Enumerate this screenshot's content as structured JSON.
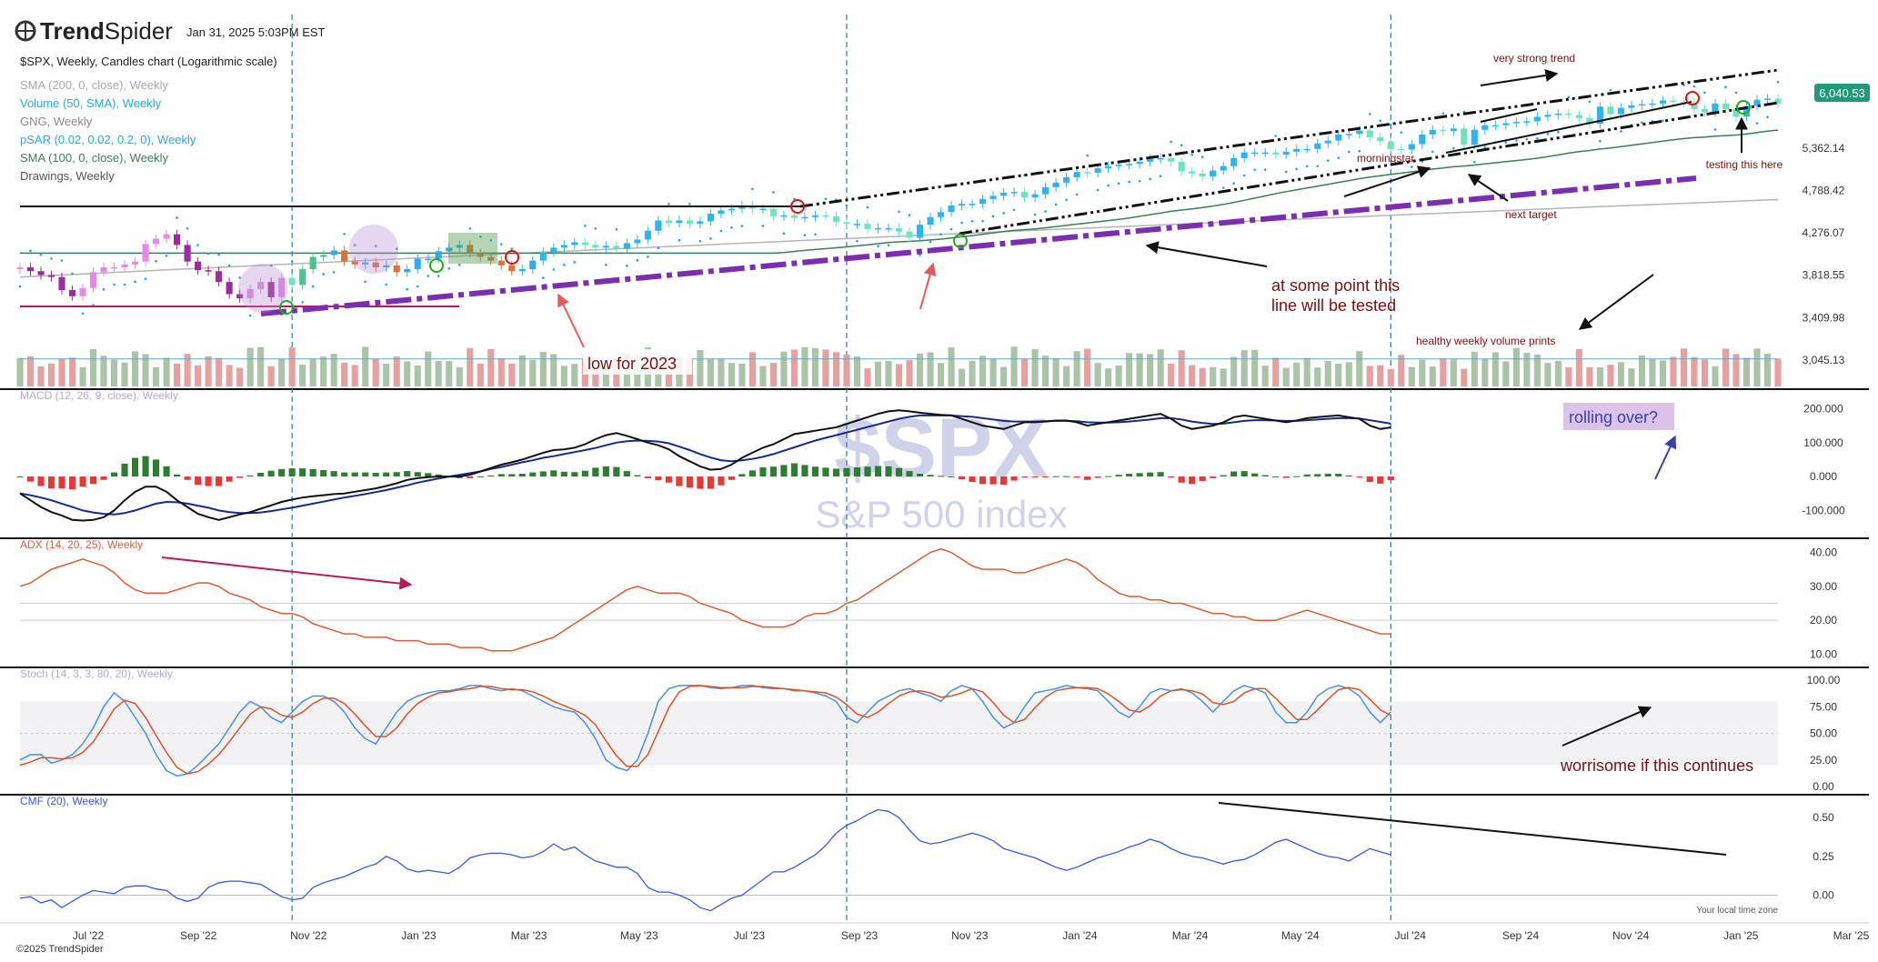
{
  "header": {
    "logo_a": "Trend",
    "logo_b": "Spider",
    "timestamp": "Jan 31, 2025 5:03PM EST",
    "chart_title": "$SPX, Weekly, Candles chart (Logarithmic scale)",
    "footer": "©2025 TrendSpider",
    "local_time": "Your local time zone"
  },
  "indicators": [
    {
      "label": "SMA (200, 0, close), Weekly",
      "color": "#a8a8a8"
    },
    {
      "label": "Volume (50, SMA), Weekly",
      "color": "#2aa6e0"
    },
    {
      "label": "GNG, Weekly",
      "color": "#888888"
    },
    {
      "label": "pSAR (0.02, 0.02, 0.2, 0), Weekly",
      "color": "#2aa6e0"
    },
    {
      "label": "SMA (100, 0, close), Weekly",
      "color": "#3e7d5a"
    },
    {
      "label": "Drawings, Weekly",
      "color": "#555555"
    }
  ],
  "watermark": {
    "symbol": "$SPX",
    "name": "S&P 500 index"
  },
  "annotations": {
    "very_strong_trend": "very strong trend",
    "testing": "testing this here",
    "morningstar": "morningstar",
    "next_target": "next target",
    "some_point_1": "at some point this",
    "some_point_2": "line will be tested",
    "healthy_volume": "healthy weekly volume prints",
    "low_2023": "low for 2023",
    "rolling_over": "rolling over?",
    "worrisome": "worrisome if this continues"
  },
  "price_badge": "6,040.53",
  "chart_data": [
    {
      "type": "candlestick",
      "title": "$SPX, Weekly, Candles chart (Logarithmic scale)",
      "y_scale": "log",
      "ylim": [
        3000,
        6400
      ],
      "y_ticks": [
        "5,362.14",
        "4,788.42",
        "4,276.07",
        "3,818.55",
        "3,409.98",
        "3,045.13"
      ],
      "x_ticks": [
        "Jul '22",
        "Sep '22",
        "Nov '22",
        "Jan '23",
        "Mar '23",
        "May '23",
        "Jul '23",
        "Sep '23",
        "Nov '23",
        "Jan '24",
        "Mar '24",
        "May '24",
        "Jul '24",
        "Sep '24",
        "Nov '24",
        "Jan '25",
        "Mar '25"
      ],
      "last_price": 6040.53,
      "horizontal_levels": [
        4600,
        3590
      ],
      "weekly_closes": [
        3900,
        3860,
        3820,
        3800,
        3670,
        3610,
        3690,
        3850,
        3900,
        3900,
        3930,
        3960,
        4150,
        4210,
        4260,
        4140,
        3960,
        3870,
        3860,
        3750,
        3630,
        3590,
        3680,
        3750,
        3600,
        3790,
        3720,
        3880,
        4010,
        4030,
        4080,
        3960,
        3930,
        3950,
        3900,
        3920,
        3850,
        3880,
        3990,
        3990,
        4070,
        4110,
        4140,
        4050,
        4010,
        3970,
        3920,
        3860,
        3880,
        3970,
        4060,
        4110,
        4140,
        4170,
        4140,
        4110,
        4130,
        4100,
        4160,
        4200,
        4300,
        4420,
        4390,
        4420,
        4380,
        4410,
        4500,
        4540,
        4560,
        4600,
        4560,
        4560,
        4470,
        4480,
        4450,
        4460,
        4480,
        4470,
        4400,
        4380,
        4380,
        4320,
        4330,
        4330,
        4290,
        4220,
        4370,
        4460,
        4520,
        4600,
        4620,
        4620,
        4680,
        4720,
        4760,
        4770,
        4700,
        4740,
        4830,
        4890,
        4960,
        5030,
        5020,
        5080,
        5110,
        5130,
        5140,
        5170,
        5210,
        5220,
        5170,
        5040,
        5010,
        4970,
        5050,
        5110,
        5220,
        5300,
        5300,
        5300,
        5270,
        5310,
        5350,
        5350,
        5430,
        5470,
        5560,
        5570,
        5620,
        5520,
        5460,
        5350,
        5340,
        5420,
        5560,
        5630,
        5610,
        5650,
        5410,
        5630,
        5700,
        5700,
        5730,
        5750,
        5760,
        5830,
        5860,
        5880,
        5860,
        5810,
        5720,
        5990,
        5870,
        5970,
        6010,
        6030,
        6040,
        6090,
        6070,
        6050,
        5950,
        5900,
        6040,
        5950,
        5830,
        6000,
        6100,
        6120,
        6040
      ]
    },
    {
      "type": "bar",
      "title": "Volume (50, SMA), Weekly",
      "yrange": [
        0,
        1
      ]
    },
    {
      "type": "line",
      "title": "MACD (12, 26, 9, close), Weekly",
      "ylim": [
        -150,
        220
      ],
      "y_ticks": [
        "200.000",
        "100.000",
        "0.000",
        "-100.000"
      ],
      "series": [
        {
          "name": "MACD",
          "values": [
            -50,
            -70,
            -90,
            -105,
            -115,
            -128,
            -130,
            -128,
            -120,
            -100,
            -70,
            -45,
            -30,
            -30,
            -45,
            -70,
            -90,
            -110,
            -120,
            -128,
            -120,
            -112,
            -105,
            -95,
            -85,
            -75,
            -68,
            -62,
            -58,
            -55,
            -52,
            -50,
            -45,
            -40,
            -35,
            -28,
            -20,
            -10,
            -5,
            -2,
            0,
            0,
            0,
            5,
            15,
            25,
            35,
            42,
            50,
            60,
            70,
            78,
            80,
            85,
            95,
            110,
            122,
            128,
            120,
            110,
            100,
            92,
            80,
            60,
            45,
            30,
            20,
            22,
            35,
            55,
            70,
            85,
            95,
            110,
            125,
            130,
            135,
            140,
            145,
            155,
            165,
            175,
            185,
            192,
            195,
            192,
            188,
            185,
            182,
            180,
            170,
            160,
            150,
            145,
            140,
            150,
            160,
            160,
            162,
            165,
            165,
            160,
            150,
            155,
            160,
            165,
            170,
            175,
            180,
            185,
            170,
            150,
            140,
            145,
            150,
            160,
            175,
            180,
            175,
            170,
            165,
            160,
            165,
            172,
            175,
            178,
            180,
            175,
            170,
            150,
            140,
            145
          ]
        },
        {
          "name": "Signal",
          "values": [
            -50,
            -55,
            -62,
            -70,
            -80,
            -90,
            -100,
            -106,
            -110,
            -112,
            -108,
            -100,
            -90,
            -80,
            -75,
            -76,
            -80,
            -86,
            -92,
            -100,
            -105,
            -108,
            -108,
            -106,
            -102,
            -97,
            -92,
            -86,
            -80,
            -74,
            -68,
            -62,
            -57,
            -52,
            -46,
            -40,
            -33,
            -26,
            -18,
            -12,
            -6,
            0,
            5,
            10,
            15,
            22,
            28,
            35,
            42,
            48,
            55,
            60,
            66,
            72,
            78,
            84,
            92,
            100,
            104,
            106,
            105,
            103,
            98,
            88,
            78,
            66,
            56,
            48,
            45,
            48,
            52,
            58,
            66,
            76,
            86,
            96,
            106,
            114,
            122,
            130,
            138,
            146,
            154,
            162,
            170,
            176,
            180,
            180,
            180,
            180,
            178,
            176,
            172,
            168,
            164,
            162,
            162,
            162,
            163,
            164,
            164,
            163,
            160,
            159,
            159,
            160,
            162,
            165,
            168,
            172,
            172,
            168,
            162,
            158,
            155,
            156,
            160,
            164,
            166,
            166,
            165,
            164,
            164,
            166,
            168,
            170,
            172,
            172,
            171,
            166,
            161,
            156
          ]
        }
      ]
    },
    {
      "type": "line",
      "title": "ADX (14, 20, 25), Weekly",
      "ylim": [
        8,
        42
      ],
      "y_ticks": [
        "40.00",
        "30.00",
        "20.00",
        "10.00"
      ],
      "values": [
        30,
        31,
        33,
        35,
        36,
        37,
        38,
        37,
        36,
        34,
        31,
        29,
        28,
        28,
        28,
        29,
        30,
        31,
        31,
        30,
        28,
        27,
        26,
        24,
        23,
        22,
        22,
        21,
        19,
        18,
        17,
        16,
        16,
        15,
        15,
        15,
        14,
        14,
        14,
        13,
        13,
        13,
        12,
        12,
        12,
        11,
        11,
        11,
        12,
        13,
        14,
        15,
        17,
        19,
        21,
        23,
        25,
        27,
        29,
        30,
        29,
        28,
        28,
        28,
        27,
        25,
        24,
        23,
        22,
        20,
        19,
        18,
        18,
        18,
        19,
        21,
        22,
        22,
        23,
        25,
        26,
        28,
        30,
        32,
        34,
        36,
        38,
        40,
        41,
        40,
        38,
        36,
        35,
        35,
        35,
        34,
        34,
        35,
        36,
        37,
        38,
        37,
        35,
        32,
        30,
        28,
        27,
        27,
        26,
        26,
        25,
        25,
        24,
        23,
        22,
        22,
        21,
        21,
        20,
        20,
        20,
        21,
        22,
        23,
        22,
        21,
        20,
        19,
        18,
        17,
        16,
        16
      ]
    },
    {
      "type": "line",
      "title": "Stoch (14, 3, 3, 80, 20), Weekly",
      "ylim": [
        0,
        100
      ],
      "y_ticks": [
        "100.00",
        "75.00",
        "50.00",
        "25.00",
        "0.00"
      ],
      "series": [
        {
          "name": "%K",
          "values": [
            25,
            30,
            30,
            22,
            25,
            30,
            40,
            55,
            75,
            88,
            80,
            65,
            50,
            30,
            15,
            10,
            12,
            20,
            30,
            40,
            55,
            70,
            80,
            75,
            65,
            60,
            70,
            80,
            85,
            85,
            80,
            70,
            55,
            45,
            40,
            55,
            70,
            80,
            85,
            88,
            90,
            90,
            92,
            95,
            95,
            92,
            90,
            92,
            90,
            85,
            80,
            75,
            72,
            70,
            60,
            45,
            25,
            18,
            15,
            25,
            50,
            80,
            92,
            95,
            95,
            95,
            93,
            92,
            93,
            95,
            95,
            93,
            92,
            92,
            90,
            90,
            88,
            85,
            80,
            65,
            60,
            70,
            80,
            85,
            90,
            92,
            88,
            85,
            80,
            90,
            95,
            92,
            80,
            65,
            55,
            60,
            75,
            88,
            90,
            92,
            95,
            93,
            92,
            90,
            80,
            70,
            65,
            75,
            88,
            92,
            90,
            92,
            88,
            80,
            70,
            80,
            90,
            95,
            92,
            88,
            70,
            60,
            60,
            70,
            85,
            92,
            95,
            92,
            85,
            70,
            60,
            70
          ]
        },
        {
          "name": "%D",
          "values": [
            20,
            23,
            27,
            27,
            26,
            27,
            32,
            42,
            57,
            73,
            81,
            78,
            65,
            48,
            32,
            18,
            12,
            14,
            21,
            30,
            42,
            55,
            68,
            75,
            73,
            67,
            65,
            70,
            78,
            83,
            83,
            78,
            68,
            57,
            47,
            47,
            55,
            68,
            78,
            84,
            88,
            89,
            91,
            92,
            94,
            94,
            92,
            91,
            91,
            89,
            85,
            80,
            76,
            72,
            67,
            58,
            43,
            29,
            19,
            19,
            30,
            52,
            74,
            89,
            94,
            95,
            94,
            93,
            93,
            93,
            94,
            94,
            93,
            92,
            91,
            90,
            89,
            88,
            84,
            77,
            68,
            65,
            70,
            78,
            85,
            89,
            90,
            88,
            84,
            85,
            88,
            92,
            89,
            79,
            67,
            60,
            63,
            74,
            84,
            90,
            92,
            93,
            93,
            92,
            87,
            80,
            72,
            70,
            76,
            85,
            90,
            91,
            90,
            87,
            79,
            77,
            80,
            88,
            92,
            92,
            83,
            73,
            63,
            63,
            72,
            82,
            91,
            93,
            91,
            82,
            72,
            67
          ]
        }
      ]
    },
    {
      "type": "line",
      "title": "CMF (20), Weekly",
      "ylim": [
        -0.12,
        0.6
      ],
      "y_ticks": [
        "0.50",
        "0.25",
        "0.00"
      ],
      "values": [
        -0.02,
        -0.01,
        -0.05,
        -0.03,
        -0.08,
        -0.04,
        0.0,
        0.03,
        0.02,
        0.01,
        0.05,
        0.06,
        0.06,
        0.04,
        0.03,
        -0.02,
        -0.04,
        -0.02,
        0.05,
        0.08,
        0.09,
        0.09,
        0.08,
        0.07,
        0.03,
        -0.01,
        -0.03,
        -0.02,
        0.05,
        0.08,
        0.1,
        0.12,
        0.15,
        0.18,
        0.2,
        0.25,
        0.22,
        0.17,
        0.15,
        0.16,
        0.15,
        0.14,
        0.18,
        0.24,
        0.26,
        0.27,
        0.27,
        0.26,
        0.24,
        0.25,
        0.28,
        0.33,
        0.29,
        0.31,
        0.26,
        0.22,
        0.2,
        0.18,
        0.18,
        0.14,
        0.05,
        0.02,
        0.02,
        0.0,
        -0.03,
        -0.08,
        -0.1,
        -0.06,
        -0.02,
        0.0,
        0.05,
        0.1,
        0.15,
        0.15,
        0.18,
        0.22,
        0.26,
        0.32,
        0.4,
        0.45,
        0.48,
        0.52,
        0.55,
        0.54,
        0.5,
        0.42,
        0.35,
        0.33,
        0.34,
        0.36,
        0.38,
        0.4,
        0.38,
        0.35,
        0.3,
        0.28,
        0.26,
        0.24,
        0.21,
        0.18,
        0.16,
        0.18,
        0.21,
        0.24,
        0.26,
        0.28,
        0.31,
        0.33,
        0.36,
        0.34,
        0.3,
        0.27,
        0.25,
        0.24,
        0.22,
        0.2,
        0.22,
        0.23,
        0.26,
        0.3,
        0.34,
        0.36,
        0.33,
        0.3,
        0.27,
        0.25,
        0.24,
        0.22,
        0.26,
        0.3,
        0.28,
        0.26
      ]
    }
  ]
}
